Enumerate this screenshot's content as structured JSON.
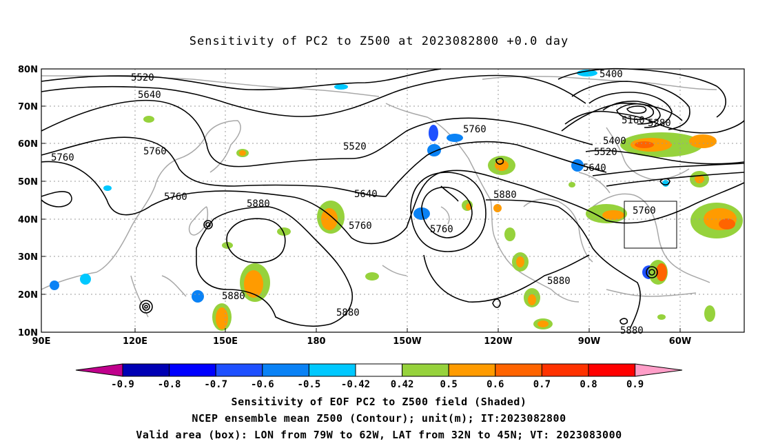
{
  "title": "Sensitivity of PC2 to Z500 at 2023082800 +0.0 day",
  "map": {
    "lat_labels": [
      "80N",
      "70N",
      "60N",
      "50N",
      "40N",
      "30N",
      "20N",
      "10N"
    ],
    "lon_labels": [
      "90E",
      "120E",
      "150E",
      "180",
      "150W",
      "120W",
      "90W",
      "60W"
    ],
    "valid_box": {
      "lon_from": "79W",
      "lon_to": "62W",
      "lat_from": "32N",
      "lat_to": "45N"
    },
    "contour_labels": [
      "5520",
      "5640",
      "5760",
      "5760",
      "5760",
      "5880",
      "5520",
      "5640",
      "5760",
      "5760",
      "5760",
      "5880",
      "5880",
      "5880",
      "5400",
      "5160",
      "5280",
      "5400",
      "5520",
      "5640",
      "5760",
      "5880",
      "5880"
    ]
  },
  "colorbar": {
    "ticks": [
      "-0.9",
      "-0.8",
      "-0.7",
      "-0.6",
      "-0.5",
      "-0.42",
      "0.42",
      "0.5",
      "0.6",
      "0.7",
      "0.8",
      "0.9"
    ],
    "colors": [
      "#c0008c",
      "#0000b4",
      "#0000ff",
      "#1e50ff",
      "#0a82f5",
      "#00c8ff",
      "#ffffff",
      "#96d23c",
      "#ff9b00",
      "#ff6400",
      "#ff3200",
      "#ff0000",
      "#ff9ec8"
    ]
  },
  "captions": {
    "line1": "Sensitivity of EOF PC2 to Z500 field (Shaded)",
    "line2": "NCEP ensemble mean Z500 (Contour); unit(m); IT:2023082800",
    "line3": "Valid area (box): LON from 79W to 62W, LAT from 32N to 45N; VT: 2023083000"
  }
}
